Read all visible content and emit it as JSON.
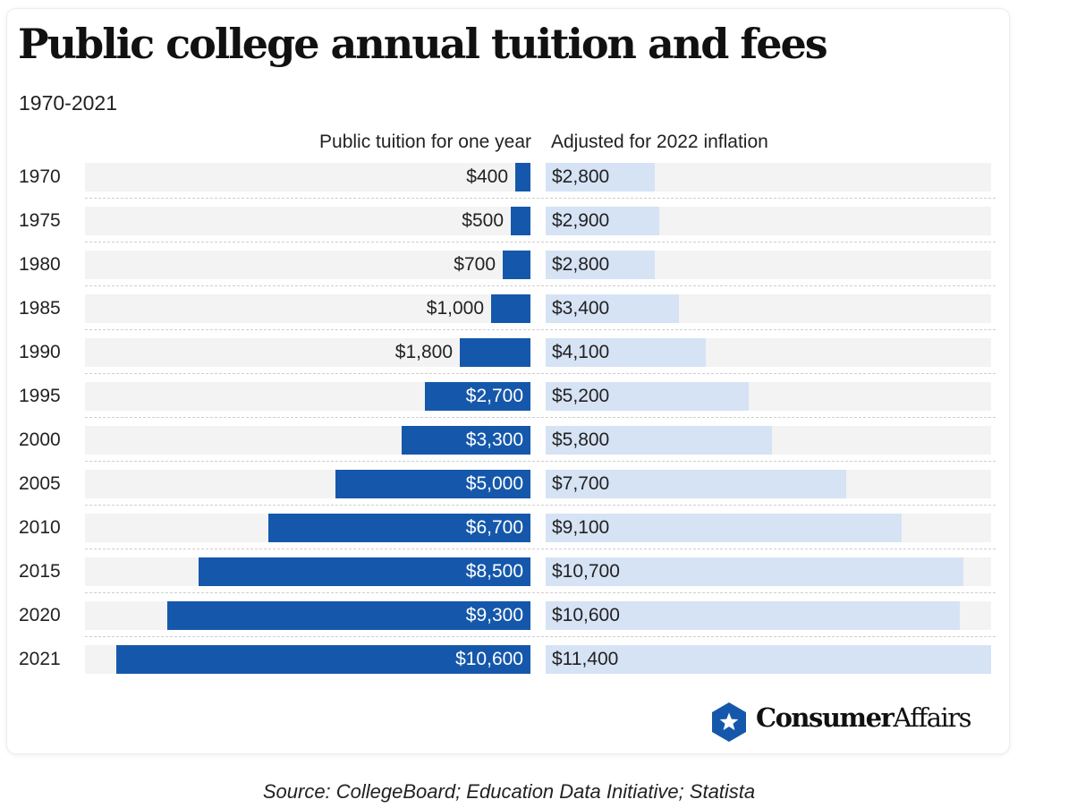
{
  "chart_data": {
    "type": "bar",
    "title": "Public college annual tuition and fees",
    "subtitle": "1970-2021",
    "categories": [
      "1970",
      "1975",
      "1980",
      "1985",
      "1990",
      "1995",
      "2000",
      "2005",
      "2010",
      "2015",
      "2020",
      "2021"
    ],
    "series": [
      {
        "name": "Public tuition for one year",
        "values": [
          400,
          500,
          700,
          1000,
          1800,
          2700,
          3300,
          5000,
          6700,
          8500,
          9300,
          10600
        ],
        "labels": [
          "$400",
          "$500",
          "$700",
          "$1,000",
          "$1,800",
          "$2,700",
          "$3,300",
          "$5,000",
          "$6,700",
          "$8,500",
          "$9,300",
          "$10,600"
        ],
        "color": "#1558ab"
      },
      {
        "name": "Adjusted for 2022 inflation",
        "values": [
          2800,
          2900,
          2800,
          3400,
          4100,
          5200,
          5800,
          7700,
          9100,
          10700,
          10600,
          11400
        ],
        "labels": [
          "$2,800",
          "$2,900",
          "$2,800",
          "$3,400",
          "$4,100",
          "$5,200",
          "$5,800",
          "$7,700",
          "$9,100",
          "$10,700",
          "$10,600",
          "$11,400"
        ],
        "color": "#d6e3f5"
      }
    ],
    "xmax_left": 11400,
    "xmax_right": 11400,
    "source": "Source: CollegeBoard; Education Data Initiative; Statista"
  },
  "logo": {
    "bold": "Consumer",
    "regular": "Affairs",
    "icon": "star-hexagon-icon",
    "color": "#1558ab"
  }
}
